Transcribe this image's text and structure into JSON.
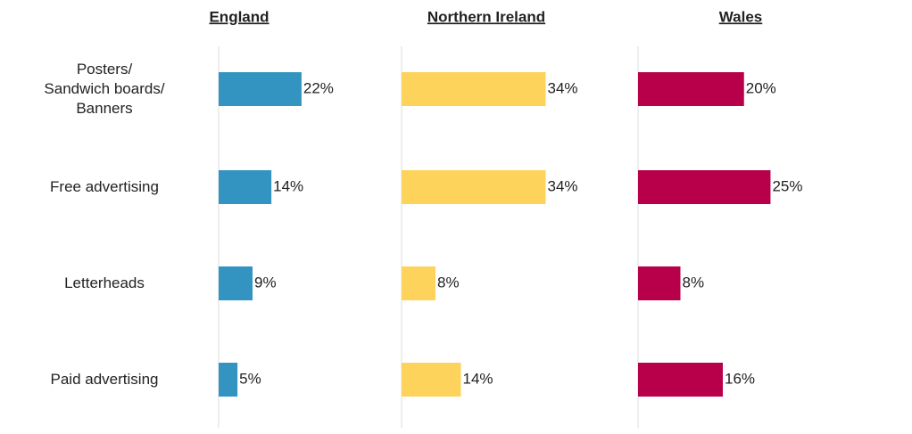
{
  "chart_data": [
    {
      "type": "bar",
      "orientation": "horizontal",
      "title": "England",
      "categories": [
        "Posters/\nSandwich boards/\nBanners",
        "Free advertising",
        "Letterheads",
        "Paid advertising"
      ],
      "values": [
        22,
        14,
        9,
        5
      ],
      "value_labels": [
        "22%",
        "14%",
        "9%",
        "5%"
      ],
      "color": "#3393c1",
      "xlim": [
        0,
        45
      ]
    },
    {
      "type": "bar",
      "orientation": "horizontal",
      "title": "Northern Ireland",
      "values": [
        34,
        34,
        8,
        14
      ],
      "value_labels": [
        "34%",
        "34%",
        "8%",
        "14%"
      ],
      "color": "#fed35b",
      "xlim": [
        0,
        40
      ]
    },
    {
      "type": "bar",
      "orientation": "horizontal",
      "title": "Wales",
      "values": [
        20,
        25,
        8,
        16
      ],
      "value_labels": [
        "20%",
        "25%",
        "8%",
        "16%"
      ],
      "color": "#b8004a",
      "xlim": [
        0,
        32
      ]
    }
  ]
}
